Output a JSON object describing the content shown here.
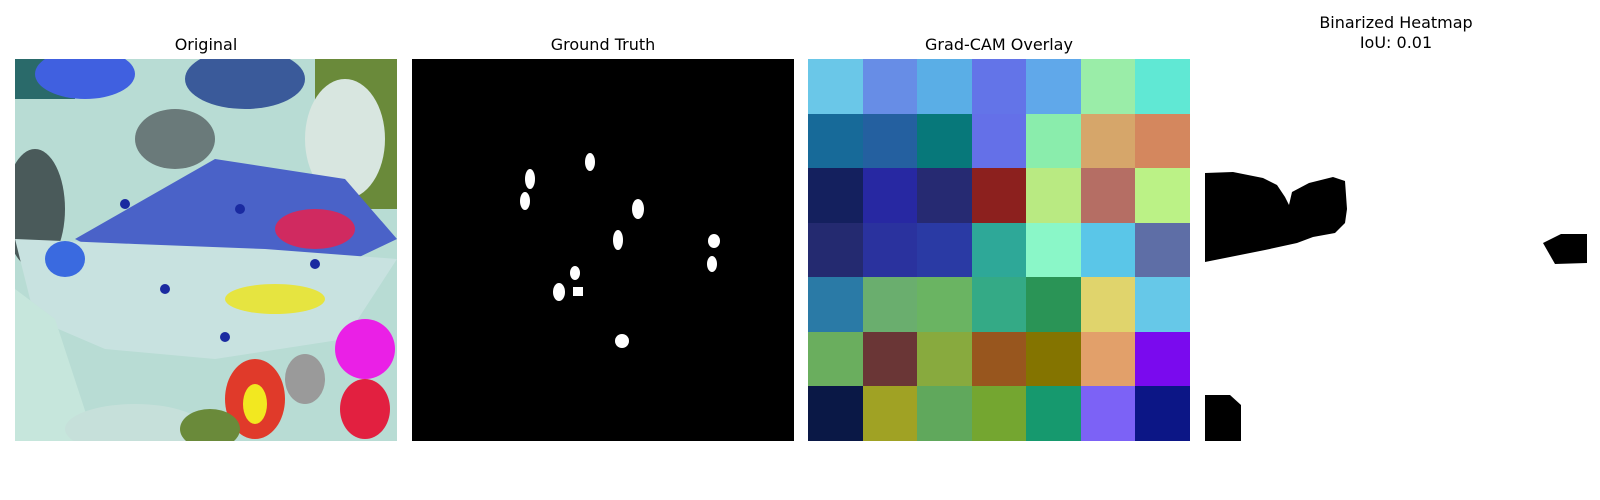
{
  "panels": [
    {
      "title": "Original"
    },
    {
      "title": "Ground Truth"
    },
    {
      "title": "Grad-CAM Overlay"
    },
    {
      "title": "Binarized Heatmap\nIoU: 0.01"
    }
  ],
  "gradcam_colors": [
    [
      "#6ac7e8",
      "#678de6",
      "#5aaee6",
      "#6374e8",
      "#60a8ea",
      "#9aeda8",
      "#60e8d4"
    ],
    [
      "#176a99",
      "#2460a0",
      "#07787a",
      "#6470e8",
      "#8aedac",
      "#d6a66a",
      "#d4875e"
    ],
    [
      "#14205e",
      "#2728a2",
      "#262a72",
      "#8c201e",
      "#b9ea82",
      "#b56e64",
      "#bbf286"
    ],
    [
      "#242a70",
      "#2a329e",
      "#2a3aa4",
      "#2ea898",
      "#8af7c8",
      "#5ac6e8",
      "#5e6ea6"
    ],
    [
      "#2a7aa6",
      "#6aae6e",
      "#6ab462",
      "#34aa86",
      "#2a9456",
      "#e0d46c",
      "#66c8e8"
    ],
    [
      "#6aae5e",
      "#6a3636",
      "#88aa3e",
      "#98561e",
      "#847400",
      "#e2a06a",
      "#7a0aee"
    ],
    [
      "#0a1846",
      "#a0a224",
      "#60a85c",
      "#74a630",
      "#16996e",
      "#7c62f6",
      "#0c1686"
    ]
  ]
}
